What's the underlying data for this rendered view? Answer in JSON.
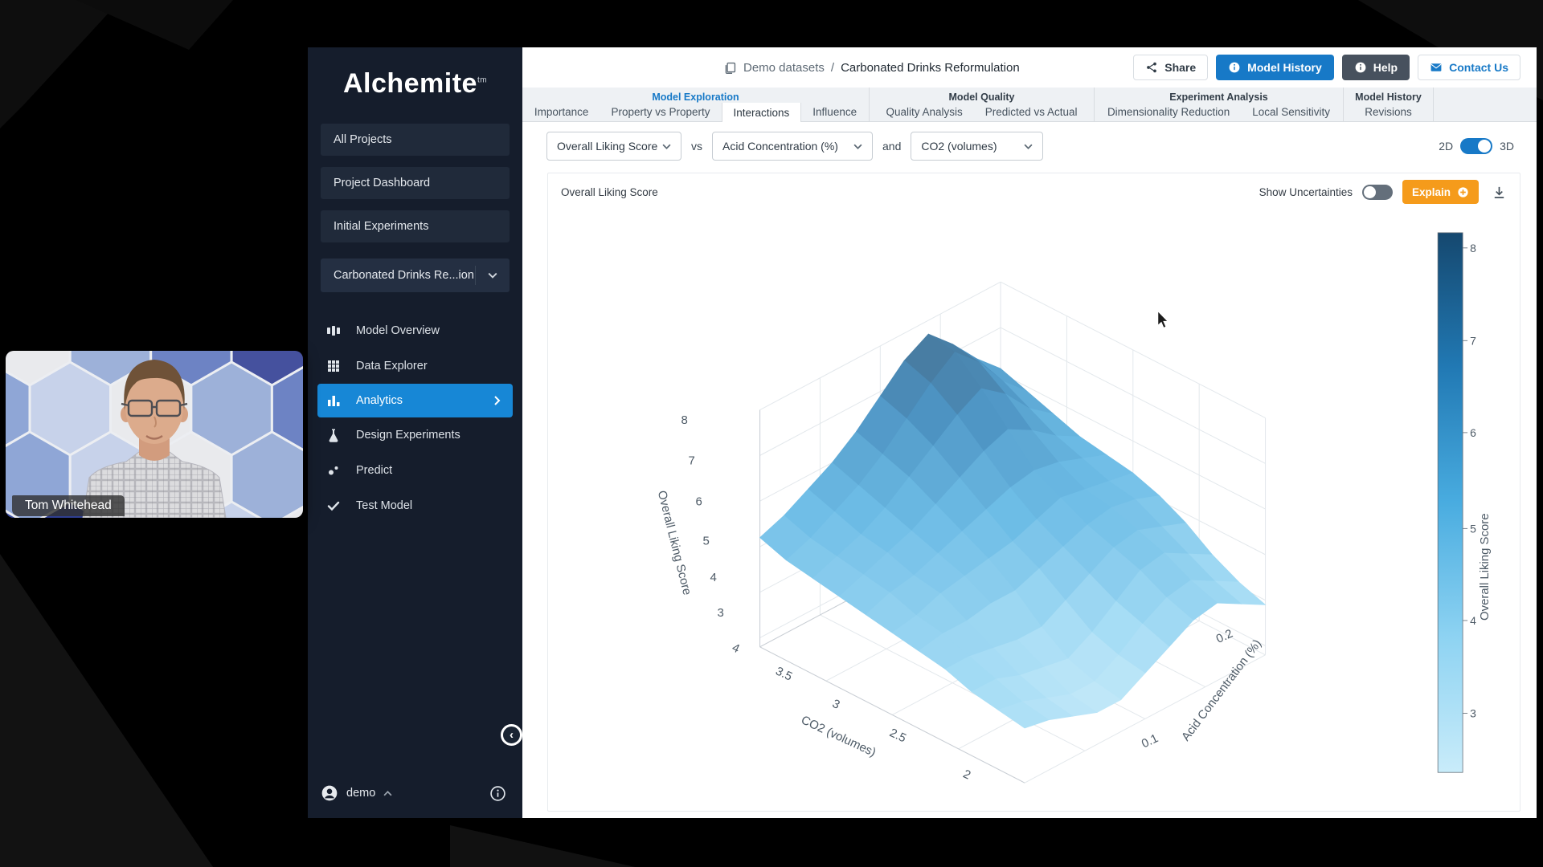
{
  "header": {
    "breadcrumb_root": "Demo datasets",
    "breadcrumb_separator": "/",
    "breadcrumb_current": "Carbonated Drinks Reformulation",
    "share_label": "Share",
    "model_history_label": "Model History",
    "help_label": "Help",
    "contact_label": "Contact Us"
  },
  "tabs": {
    "groups": [
      {
        "label": "Model Exploration",
        "items": [
          {
            "label": "Importance"
          },
          {
            "label": "Property vs Property"
          },
          {
            "label": "Interactions"
          },
          {
            "label": "Influence"
          }
        ]
      },
      {
        "label": "Model Quality",
        "items": [
          {
            "label": "Quality Analysis"
          },
          {
            "label": "Predicted vs Actual"
          }
        ]
      },
      {
        "label": "Experiment Analysis",
        "items": [
          {
            "label": "Dimensionality Reduction"
          },
          {
            "label": "Local Sensitivity"
          }
        ]
      },
      {
        "label": "Model History",
        "items": [
          {
            "label": "Revisions"
          }
        ]
      }
    ]
  },
  "controls": {
    "y_select": "Overall Liking Score",
    "vs_label": "vs",
    "x_select": "Acid Concentration (%)",
    "and_label": "and",
    "x2_select": "CO2 (volumes)",
    "toggle_2d": "2D",
    "toggle_3d": "3D"
  },
  "panel": {
    "title": "Overall Liking Score",
    "show_uncertainties_label": "Show Uncertainties",
    "explain_label": "Explain"
  },
  "sidebar": {
    "logo": "Alchemite",
    "logo_tm": "tm",
    "nav": [
      {
        "label": "All Projects"
      },
      {
        "label": "Project Dashboard"
      },
      {
        "label": "Initial Experiments"
      }
    ],
    "project_selector": "Carbonated Drinks Re...ion",
    "menu": [
      {
        "label": "Model Overview"
      },
      {
        "label": "Data Explorer"
      },
      {
        "label": "Analytics"
      },
      {
        "label": "Design Experiments"
      },
      {
        "label": "Predict"
      },
      {
        "label": "Test Model"
      }
    ],
    "username": "demo"
  },
  "webcam": {
    "name_tag": "Tom Whitehead"
  },
  "colors": {
    "accent_blue": "#1779c7",
    "active_menu_blue": "#1787d6",
    "explain_orange": "#f59b1b",
    "sidebar_bg": "#151d2c"
  },
  "chart_data": {
    "type": "surface",
    "title": "Overall Liking Score",
    "x_axis": {
      "label": "CO2 (volumes)",
      "ticks": [
        "4",
        "3.5",
        "3",
        "2.5",
        "2"
      ],
      "range": [
        4,
        2
      ]
    },
    "y_axis": {
      "label": "Acid Concentration (%)",
      "ticks": [
        "0.2",
        "0.1"
      ],
      "range": [
        0.05,
        0.25
      ]
    },
    "z_axis": {
      "label": "Overall Liking Score",
      "ticks": [
        "8",
        "7",
        "6",
        "5",
        "4",
        "3"
      ],
      "range": [
        2.8,
        8
      ]
    },
    "colorbar": {
      "label": "Overall Liking Score",
      "ticks": [
        "8",
        "7",
        "6",
        "5",
        "4",
        "3"
      ]
    },
    "colorscale": [
      [
        "0",
        "#c9ecfa"
      ],
      [
        "0.25",
        "#8ed3f2"
      ],
      [
        "0.5",
        "#49ace0"
      ],
      [
        "0.75",
        "#2179b4"
      ],
      [
        "1",
        "#15486f"
      ]
    ],
    "z_grid": [
      [
        5.2,
        5.4,
        5.7,
        6.0,
        6.4,
        6.9,
        7.4,
        7.7,
        7.2,
        6.6,
        6.1
      ],
      [
        5.0,
        5.2,
        5.5,
        5.8,
        6.2,
        6.7,
        7.2,
        7.6,
        7.1,
        6.4,
        5.9
      ],
      [
        4.9,
        5.1,
        5.3,
        5.6,
        6.0,
        6.4,
        6.8,
        7.1,
        6.7,
        6.1,
        5.7
      ],
      [
        4.8,
        5.0,
        5.2,
        5.4,
        5.7,
        6.0,
        6.3,
        6.5,
        6.2,
        5.8,
        5.5
      ],
      [
        4.7,
        4.9,
        5.0,
        5.2,
        5.4,
        5.6,
        5.8,
        5.9,
        5.8,
        5.6,
        5.4
      ],
      [
        4.6,
        4.7,
        4.9,
        5.0,
        5.1,
        5.2,
        5.4,
        5.6,
        5.5,
        5.4,
        5.3
      ],
      [
        4.5,
        4.6,
        4.6,
        4.7,
        4.7,
        4.9,
        5.1,
        5.3,
        5.4,
        5.3,
        5.1
      ],
      [
        4.4,
        4.4,
        4.3,
        4.2,
        4.2,
        4.5,
        4.8,
        5.1,
        5.2,
        5.0,
        4.8
      ],
      [
        4.2,
        4.2,
        4.0,
        3.9,
        3.8,
        4.1,
        4.5,
        4.9,
        5.0,
        4.7,
        4.4
      ],
      [
        4.1,
        4.0,
        3.8,
        3.6,
        3.6,
        3.9,
        4.3,
        4.6,
        4.7,
        4.4,
        4.1
      ],
      [
        4.0,
        3.9,
        3.7,
        3.5,
        3.5,
        3.8,
        4.1,
        4.4,
        4.5,
        4.2,
        3.9
      ]
    ]
  }
}
